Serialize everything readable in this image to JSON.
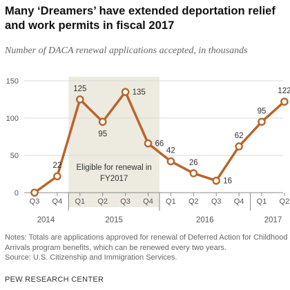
{
  "title": "Many ‘Dreamers’ have extended deportation relief and work permits in fiscal 2017",
  "subtitle": "Number of DACA renewal applications accepted, in thousands",
  "notes": "Notes: Totals are applications approved for renewal of Deferred Action for Childhood Arrivals program benefits, which can be renewed every two years.",
  "source": "Source: U.S. Citizenship and Immigration Services.",
  "brand": "PEW RESEARCH CENTER",
  "colors": {
    "line": "#b9652a",
    "shade": "#edeae0",
    "grid": "#d9d9d9",
    "axis": "#888888"
  },
  "chart_data": {
    "type": "line",
    "title": "",
    "xlabel": "",
    "ylabel": "",
    "ylim": [
      0,
      150
    ],
    "yticks": [
      0,
      50,
      100,
      150
    ],
    "grid": true,
    "categories": [
      "Q3",
      "Q4",
      "Q1",
      "Q2",
      "Q3",
      "Q4",
      "Q1",
      "Q2",
      "Q3",
      "Q4",
      "Q1",
      "Q2"
    ],
    "values": [
      0,
      22,
      125,
      95,
      135,
      66,
      42,
      26,
      16,
      62,
      95,
      122
    ],
    "data_labels": [
      "",
      "22",
      "125",
      "95",
      "135",
      "66",
      "42",
      "26",
      "16",
      "62",
      "95",
      "122"
    ],
    "year_groups": [
      {
        "label": "2014",
        "start": 0,
        "end": 1
      },
      {
        "label": "2015",
        "start": 2,
        "end": 5
      },
      {
        "label": "2016",
        "start": 6,
        "end": 9
      },
      {
        "label": "2017",
        "start": 10,
        "end": 11
      }
    ],
    "shaded_region": {
      "start": 2,
      "end": 5,
      "label_lines": [
        "Eligible for renewal in",
        "FY2017"
      ]
    }
  }
}
